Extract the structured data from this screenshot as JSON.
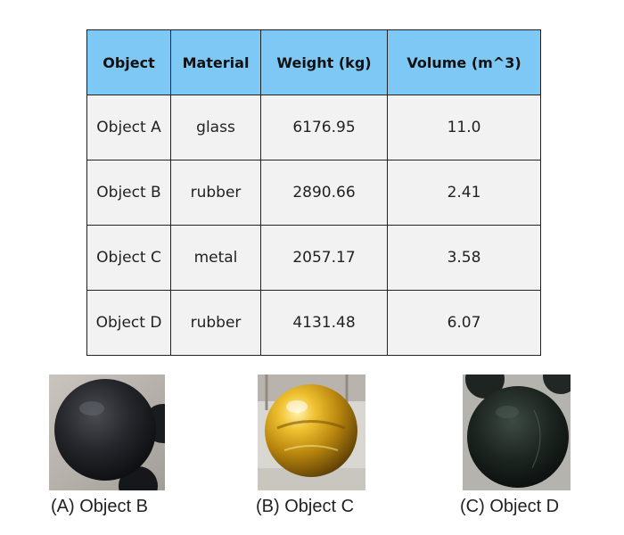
{
  "table": {
    "headers": [
      "Object",
      "Material",
      "Weight (kg)",
      "Volume (m^3)"
    ],
    "rows": [
      [
        "Object A",
        "glass",
        "6176.95",
        "11.0"
      ],
      [
        "Object B",
        "rubber",
        "2890.66",
        "2.41"
      ],
      [
        "Object C",
        "metal",
        "2057.17",
        "3.58"
      ],
      [
        "Object D",
        "rubber",
        "4131.48",
        "6.07"
      ]
    ]
  },
  "images": [
    {
      "caption": "(A) Object B"
    },
    {
      "caption": "(B) Object C"
    },
    {
      "caption": "(C) Object D"
    }
  ],
  "colors": {
    "header_bg": "#7ec8f5",
    "cell_bg": "#f2f2f2"
  }
}
